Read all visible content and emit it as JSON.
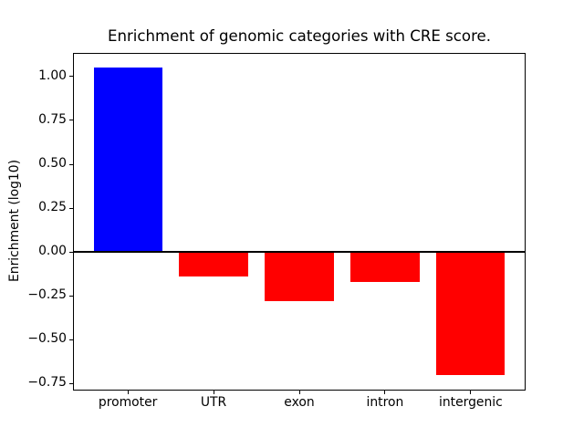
{
  "title": "Enrichment of genomic categories with CRE score.",
  "chart_data": {
    "type": "bar",
    "title": "Enrichment of genomic categories with CRE score.",
    "xlabel": "",
    "ylabel": "Enrichment (log10)",
    "categories": [
      "promoter",
      "UTR",
      "exon",
      "intron",
      "intergenic"
    ],
    "values": [
      1.05,
      -0.14,
      -0.28,
      -0.17,
      -0.7
    ],
    "bar_colors": [
      "#0000ff",
      "#ff0000",
      "#ff0000",
      "#ff0000",
      "#ff0000"
    ],
    "positive_color": "#0000ff",
    "negative_color": "#ff0000",
    "ylim": [
      -0.7875,
      1.1375
    ],
    "yticks": [
      1.0,
      0.75,
      0.5,
      0.25,
      0.0,
      -0.25,
      -0.5,
      -0.75
    ],
    "ytick_labels": [
      "1.00",
      "0.75",
      "0.50",
      "0.25",
      "0.00",
      "−0.25",
      "−0.50",
      "−0.75"
    ],
    "bar_width_fraction": 0.8,
    "zero_line": true,
    "grid": false,
    "legend": null,
    "background": "#ffffff",
    "frame_color": "#000000"
  }
}
